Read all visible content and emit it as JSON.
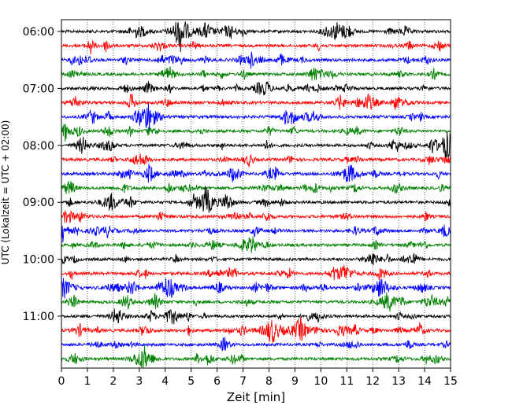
{
  "chart_data": {
    "type": "line",
    "subtype": "helicorder seismogram",
    "xlabel": "Zeit  [min]",
    "ylabel": "UTC (Lokalzeit = UTC + 02:00)",
    "xlim": [
      0,
      15
    ],
    "x_ticks": [
      "0",
      "1",
      "2",
      "3",
      "4",
      "5",
      "6",
      "7",
      "8",
      "9",
      "10",
      "11",
      "12",
      "13",
      "14",
      "15"
    ],
    "y_tick_labels": [
      "06:00",
      "07:00",
      "08:00",
      "09:00",
      "10:00",
      "11:00"
    ],
    "row_interval_minutes": 15,
    "row_count": 24,
    "grid": "vertical dotted at each minute",
    "trace_colors": [
      "#000000",
      "#ff0000",
      "#0000ff",
      "#008000"
    ],
    "notable_events": [
      {
        "row": 0,
        "minute": 4.6
      },
      {
        "row": 0,
        "minute": 10.6
      },
      {
        "row": 5,
        "minute": 11.8
      },
      {
        "row": 6,
        "minute": 3.4
      },
      {
        "row": 8,
        "minute": 14.9
      },
      {
        "row": 10,
        "minute": 11.1
      },
      {
        "row": 12,
        "minute": 1.9
      },
      {
        "row": 12,
        "minute": 5.6
      },
      {
        "row": 17,
        "minute": 10.9
      },
      {
        "row": 18,
        "minute": 0.1
      },
      {
        "row": 18,
        "minute": 12.3
      },
      {
        "row": 19,
        "minute": 12.6
      },
      {
        "row": 21,
        "minute": 8.1
      },
      {
        "row": 21,
        "minute": 9.2
      },
      {
        "row": 23,
        "minute": 3.2
      }
    ]
  }
}
